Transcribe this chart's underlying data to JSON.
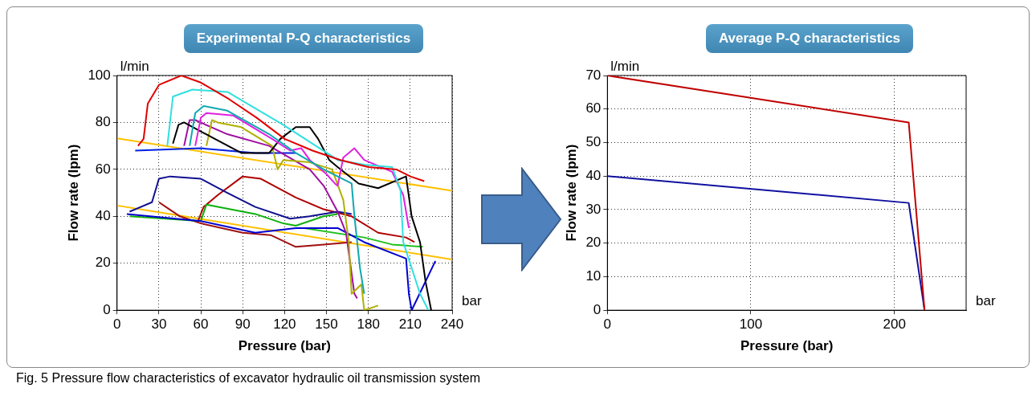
{
  "chart_data": [
    {
      "type": "line",
      "title": "Experimental P-Q characteristics",
      "xlabel": "Pressure (bar)",
      "ylabel": "Flow rate (lpm)",
      "xlim": [
        0,
        240
      ],
      "ylim": [
        0,
        100
      ],
      "xticks": [
        0,
        30,
        60,
        90,
        120,
        150,
        180,
        210,
        240
      ],
      "yticks": [
        0,
        20,
        40,
        60,
        80,
        100
      ],
      "grid": true,
      "marker": "none",
      "line_style": "solid",
      "annotations": [
        "l/min",
        "bar",
        "Fig. 5  Pressure flow characteristics of excavator hydraulic oil transmission system"
      ],
      "series": [
        {
          "color": "#e00000",
          "x": [
            15,
            19,
            22,
            30,
            46,
            60,
            80,
            100,
            120,
            140,
            160,
            180,
            200,
            210,
            220
          ],
          "values": [
            70,
            73,
            88,
            96,
            100,
            97,
            90,
            82,
            73,
            68,
            64,
            61,
            60,
            57,
            55
          ]
        },
        {
          "color": "#30e0e0",
          "x": [
            36,
            40,
            54,
            79,
            119,
            158,
            177,
            197,
            203,
            205,
            217,
            223
          ],
          "values": [
            70,
            91,
            94,
            93,
            79,
            64,
            62,
            61,
            51,
            29,
            7,
            0
          ]
        },
        {
          "color": "#10a8b0",
          "x": [
            52,
            56,
            62,
            79,
            109,
            128,
            148,
            168,
            170,
            174,
            177
          ],
          "values": [
            70,
            84,
            87,
            85,
            75,
            67,
            60,
            54,
            40,
            18,
            7
          ]
        },
        {
          "color": "#e020e0",
          "x": [
            56,
            60,
            64,
            83,
            111,
            124,
            132,
            138,
            150,
            156,
            158,
            162,
            170,
            177,
            197,
            205,
            209
          ],
          "values": [
            70,
            82,
            84,
            83,
            73,
            68,
            69,
            64,
            58,
            54,
            53,
            65,
            69,
            64,
            59,
            49,
            35
          ]
        },
        {
          "color": "#000000",
          "x": [
            40,
            44,
            48,
            70,
            89,
            109,
            117,
            128,
            138,
            144,
            152,
            158,
            173,
            187,
            207,
            211,
            217,
            221,
            225
          ],
          "values": [
            71,
            79,
            80,
            73,
            67,
            67,
            73,
            78,
            78,
            73,
            64,
            61,
            54,
            52,
            57,
            40,
            29,
            12,
            0
          ]
        },
        {
          "color": "#b0b000",
          "x": [
            64,
            68,
            72,
            89,
            111,
            115,
            119,
            138,
            154,
            162,
            166,
            168,
            175,
            177,
            187
          ],
          "values": [
            70,
            81,
            80,
            78,
            70,
            60,
            64,
            63,
            60,
            47,
            29,
            7,
            11,
            0,
            2
          ]
        },
        {
          "color": "#a010a0",
          "x": [
            48,
            52,
            56,
            79,
            109,
            138,
            148,
            158,
            164,
            170,
            172
          ],
          "values": [
            70,
            81,
            81,
            75,
            70,
            60,
            53,
            42,
            33,
            7,
            5
          ]
        },
        {
          "color": "#0020e0",
          "x": [
            13,
            60,
            99,
            128
          ],
          "values": [
            68,
            69,
            67,
            67
          ]
        },
        {
          "color": "#101090",
          "x": [
            9,
            25,
            30,
            38,
            60,
            79,
            99,
            124,
            138,
            158,
            168
          ],
          "values": [
            42,
            46,
            56,
            57,
            56,
            50,
            44,
            39,
            40,
            42,
            41
          ]
        },
        {
          "color": "#0000d0",
          "x": [
            7,
            60,
            99,
            128,
            158,
            177,
            207,
            209,
            211,
            228
          ],
          "values": [
            41,
            38,
            33,
            35,
            35,
            29,
            22,
            7,
            0,
            21
          ]
        },
        {
          "color": "#10b010",
          "x": [
            9,
            60,
            64,
            99,
            119,
            128,
            148,
            158
          ],
          "values": [
            40,
            38,
            45,
            41,
            37,
            36,
            40,
            41
          ]
        },
        {
          "color": "#20c020",
          "x": [
            134,
            177,
            197,
            219
          ],
          "values": [
            35,
            31,
            28,
            27
          ]
        },
        {
          "color": "#a01010",
          "x": [
            30,
            45,
            60,
            75,
            90,
            110,
            128,
            148,
            168
          ],
          "values": [
            46,
            40,
            37,
            35,
            33,
            32,
            27,
            28,
            29
          ]
        },
        {
          "color": "#b00000",
          "x": [
            58,
            62,
            72,
            90,
            103,
            128,
            148,
            168,
            187,
            207,
            213
          ],
          "values": [
            38,
            44,
            49,
            57,
            56,
            48,
            43,
            40,
            33,
            31,
            29
          ]
        },
        {
          "color": "#ffc000",
          "x": [
            0,
            240
          ],
          "values": [
            73.2,
            50.9
          ]
        },
        {
          "color": "#ffc000",
          "x": [
            0,
            240
          ],
          "values": [
            44.6,
            21.6
          ]
        }
      ]
    },
    {
      "type": "line",
      "title": "Average P-Q characteristics",
      "xlabel": "Pressure (bar)",
      "ylabel": "Flow rate (lpm)",
      "xlim": [
        0,
        250
      ],
      "ylim": [
        0,
        70
      ],
      "xticks": [
        0,
        100,
        200
      ],
      "yticks": [
        0,
        10,
        20,
        30,
        40,
        50,
        60,
        70
      ],
      "grid": true,
      "marker": "none",
      "line_style": "solid",
      "annotations": [
        "l/min",
        "bar"
      ],
      "series": [
        {
          "color": "#c00000",
          "x": [
            0,
            210,
            221
          ],
          "values": [
            70,
            56,
            0
          ]
        },
        {
          "color": "#1010a0",
          "x": [
            0,
            210,
            221
          ],
          "values": [
            40,
            32,
            0
          ]
        }
      ]
    }
  ]
}
